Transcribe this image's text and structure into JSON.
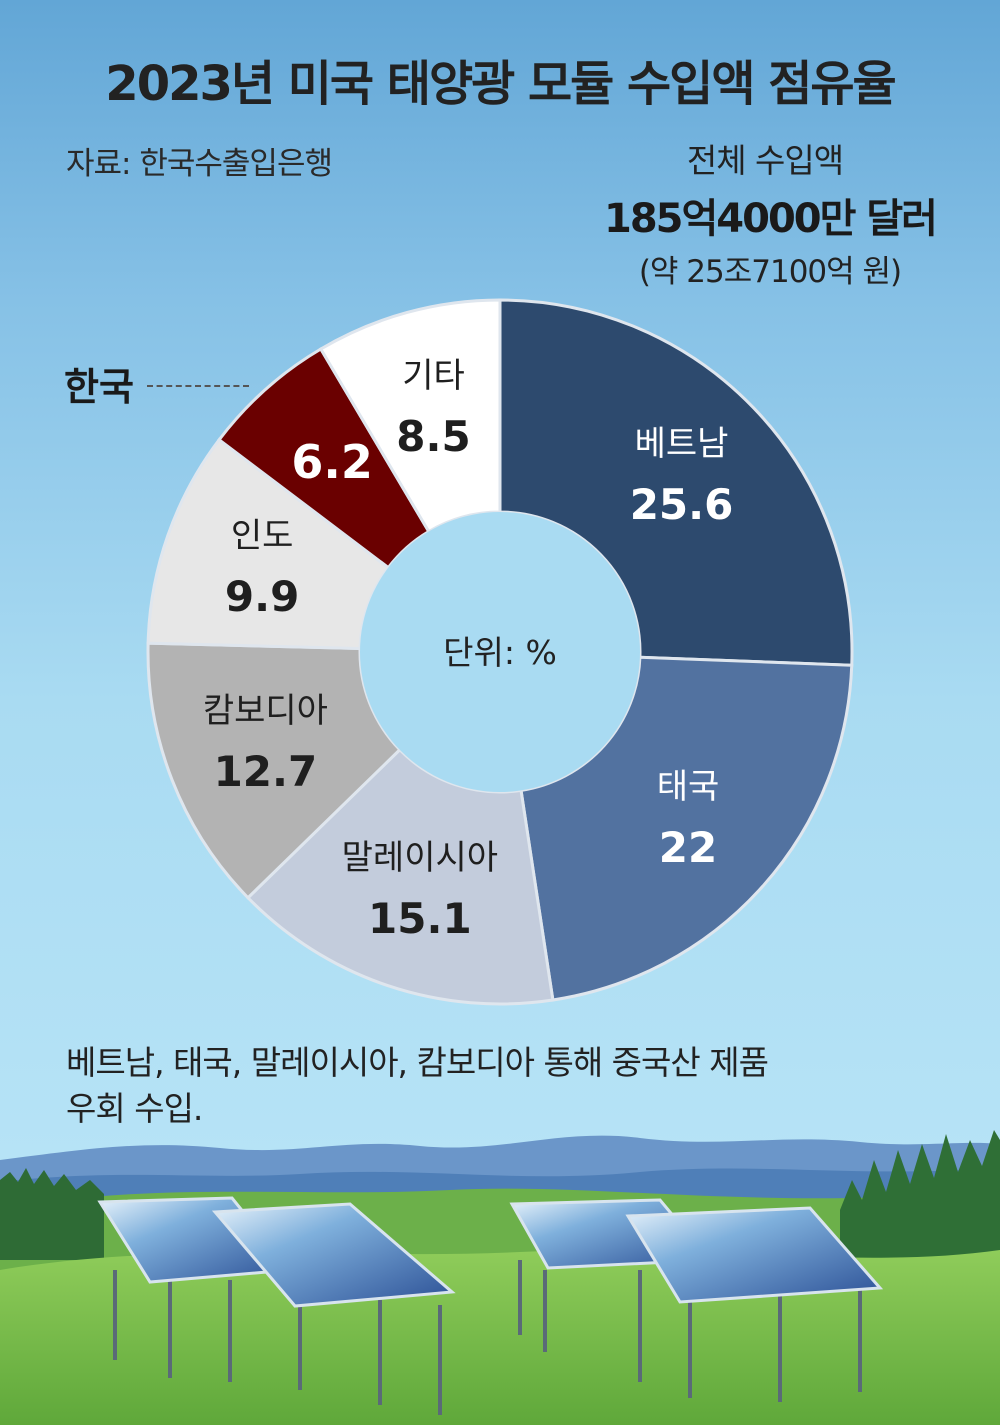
{
  "header": {
    "title": "2023년 미국 태양광 모듈 수입액 점유율",
    "source": "자료: 한국수출입은행",
    "total_label": "전체 수입액",
    "total_value": "185억4000만 달러",
    "total_krw": "(약 25조7100억 원)"
  },
  "chart_data": {
    "type": "pie",
    "variant": "donut",
    "title": "2023년 미국 태양광 모듈 수입액 점유율",
    "unit_label": "단위: %",
    "callout": "한국",
    "segments": [
      {
        "label": "베트남",
        "value": 25.6,
        "display": "25.6",
        "color": "#2d4a6e",
        "text_color": "#ffffff"
      },
      {
        "label": "태국",
        "value": 22,
        "display": "22",
        "color": "#5272a0",
        "text_color": "#ffffff"
      },
      {
        "label": "말레이시아",
        "value": 15.1,
        "display": "15.1",
        "color": "#c3ccdc",
        "text_color": "#1f1f1f"
      },
      {
        "label": "캄보디아",
        "value": 12.7,
        "display": "12.7",
        "color": "#b3b3b3",
        "text_color": "#1f1f1f"
      },
      {
        "label": "인도",
        "value": 9.9,
        "display": "9.9",
        "color": "#e7e7e7",
        "text_color": "#1f1f1f"
      },
      {
        "label": "한국",
        "value": 6.2,
        "display": "6.2",
        "color": "#6a0000",
        "text_color": "#ffffff",
        "show_name": false,
        "highlight": true
      },
      {
        "label": "기타",
        "value": 8.5,
        "display": "8.5",
        "color": "#ffffff",
        "text_color": "#1f1f1f"
      }
    ]
  },
  "footnote": {
    "line1": "베트남, 태국, 말레이시아, 캄보디아 통해 중국산 제품",
    "line2": "우회 수입."
  }
}
